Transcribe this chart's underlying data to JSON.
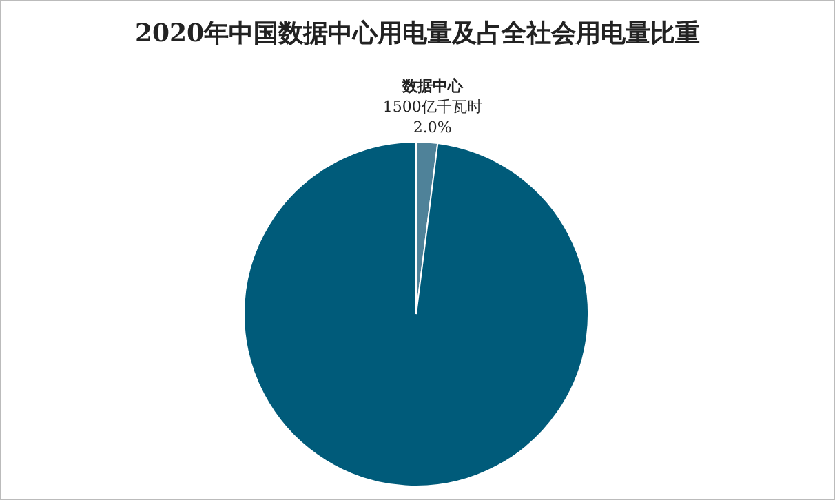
{
  "chart_data": {
    "type": "pie",
    "title": "2020年中国数据中心用电量及占全社会用电量比重",
    "categories": [
      "数据中心",
      null
    ],
    "values": [
      2.0,
      98.0
    ],
    "colors": [
      "#4f8299",
      "#005b7a"
    ],
    "value_labels": [
      "2.0%",
      null
    ],
    "annotations": [
      "1500亿千瓦时"
    ],
    "legend": false
  }
}
